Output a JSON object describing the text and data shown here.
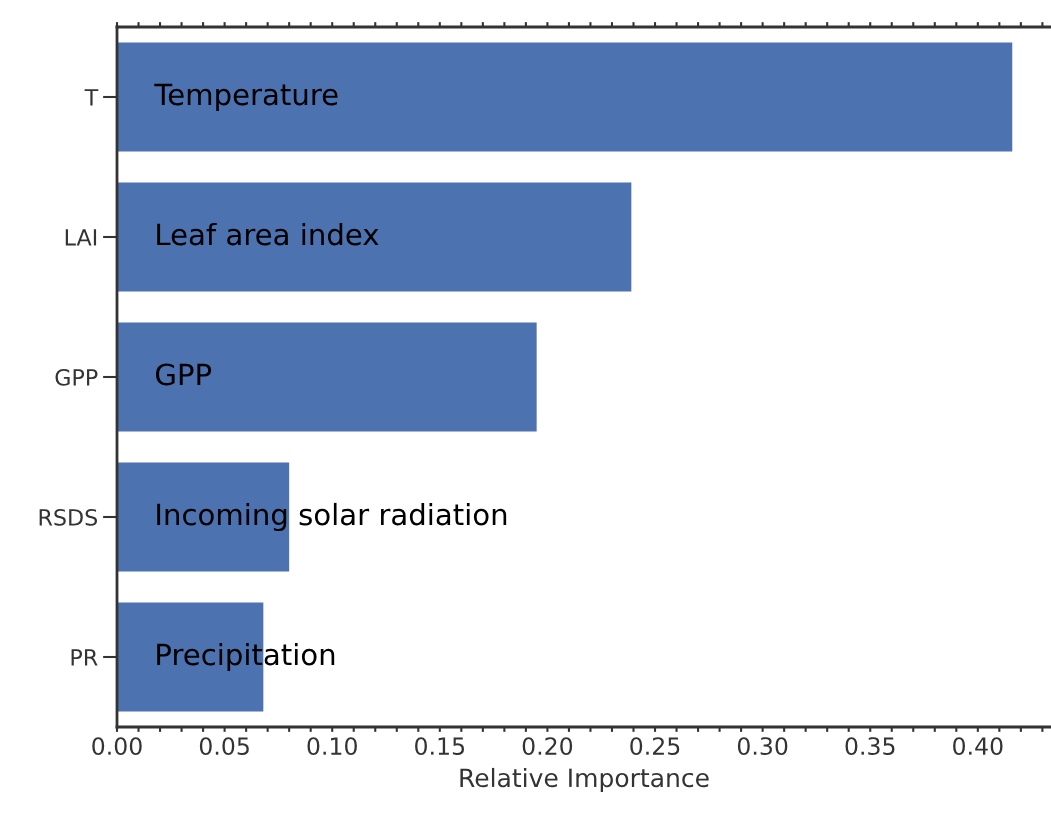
{
  "chart_data": {
    "type": "bar",
    "orientation": "horizontal",
    "xlabel": "Relative Importance",
    "categories": [
      "T",
      "LAI",
      "GPP",
      "RSDS",
      "PR"
    ],
    "values": [
      0.416,
      0.239,
      0.195,
      0.08,
      0.068
    ],
    "color": "#4c72b0",
    "annotations": [
      "Temperature",
      "Leaf area index",
      "GPP",
      "Incoming solar radiation",
      "Precipitation"
    ],
    "xlim": [
      0,
      0.434
    ],
    "xticks": [
      {
        "value": 0,
        "label": "0.00"
      },
      {
        "value": 0.01,
        "label": null
      },
      {
        "value": 0.02,
        "label": null
      },
      {
        "value": 0.03,
        "label": null
      },
      {
        "value": 0.04,
        "label": null
      },
      {
        "value": 0.05,
        "label": "0.05"
      },
      {
        "value": 0.06,
        "label": null
      },
      {
        "value": 0.07,
        "label": null
      },
      {
        "value": 0.08,
        "label": null
      },
      {
        "value": 0.09,
        "label": null
      },
      {
        "value": 0.1,
        "label": "0.10"
      },
      {
        "value": 0.11,
        "label": null
      },
      {
        "value": 0.12,
        "label": null
      },
      {
        "value": 0.13,
        "label": null
      },
      {
        "value": 0.14,
        "label": null
      },
      {
        "value": 0.15,
        "label": "0.15"
      },
      {
        "value": 0.16,
        "label": null
      },
      {
        "value": 0.17,
        "label": null
      },
      {
        "value": 0.18,
        "label": null
      },
      {
        "value": 0.19,
        "label": null
      },
      {
        "value": 0.2,
        "label": "0.20"
      },
      {
        "value": 0.21,
        "label": null
      },
      {
        "value": 0.22,
        "label": null
      },
      {
        "value": 0.23,
        "label": null
      },
      {
        "value": 0.24,
        "label": null
      },
      {
        "value": 0.25,
        "label": "0.25"
      },
      {
        "value": 0.26,
        "label": null
      },
      {
        "value": 0.27,
        "label": null
      },
      {
        "value": 0.28,
        "label": null
      },
      {
        "value": 0.29,
        "label": null
      },
      {
        "value": 0.3,
        "label": "0.30"
      },
      {
        "value": 0.31,
        "label": null
      },
      {
        "value": 0.32,
        "label": null
      },
      {
        "value": 0.33,
        "label": null
      },
      {
        "value": 0.34,
        "label": null
      },
      {
        "value": 0.35,
        "label": "0.35"
      },
      {
        "value": 0.36,
        "label": null
      },
      {
        "value": 0.37,
        "label": null
      },
      {
        "value": 0.38,
        "label": null
      },
      {
        "value": 0.39,
        "label": null
      },
      {
        "value": 0.4,
        "label": "0.40"
      },
      {
        "value": 0.41,
        "label": null
      },
      {
        "value": 0.42,
        "label": null
      },
      {
        "value": 0.43,
        "label": null
      }
    ],
    "grid": false,
    "legend": false
  }
}
